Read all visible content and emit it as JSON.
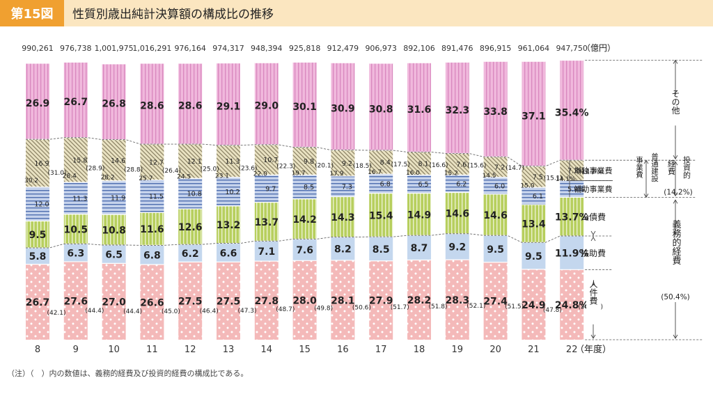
{
  "header": {
    "badge": "第15図",
    "title": "性質別歳出純計決算額の構成比の推移"
  },
  "note": "（注）（　）内の数値は、義務的経費及び投資的経費の構成比である。",
  "colors": {
    "header_badge": "#f0a030",
    "header_bar": "#fbe6c0",
    "jinken": "#f4b9b9",
    "fujo": "#c4d7ee",
    "kosai": "#b7cf5e",
    "hojo": "#c6d3ec",
    "hojo_stripe": "#3a5da5",
    "tandoku": "#e9e2c2",
    "tandoku_stripe": "#8d8466",
    "futsu_single": "#f6d07a",
    "futsu_stripe": "#e3a43a",
    "sonota": "#f0b8dc",
    "sonota_stripe": "#d27bb7"
  },
  "chart_data": {
    "type": "bar",
    "stacked": true,
    "normalized": "percent",
    "title": "性質別歳出純計決算額の構成比の推移",
    "xlabel": "（年度）",
    "unit_label": "（億円）",
    "categories": [
      "8",
      "9",
      "10",
      "11",
      "12",
      "13",
      "14",
      "15",
      "16",
      "17",
      "18",
      "19",
      "20",
      "21",
      "22"
    ],
    "totals": [
      "990,261",
      "976,738",
      "1,001,975",
      "1,016,291",
      "976,164",
      "974,317",
      "948,394",
      "925,818",
      "912,479",
      "906,973",
      "892,106",
      "891,476",
      "896,915",
      "961,064",
      "947,750"
    ],
    "series": [
      {
        "key": "jinken",
        "name": "人件費",
        "values": [
          26.7,
          27.6,
          27.0,
          26.6,
          27.5,
          27.5,
          27.8,
          28.0,
          28.1,
          27.9,
          28.2,
          28.3,
          27.4,
          24.9,
          24.8
        ],
        "labels": [
          "26.7",
          "27.6",
          "27.0",
          "26.6",
          "27.5",
          "27.5",
          "27.8",
          "28.0",
          "28.1",
          "27.9",
          "28.2",
          "28.3",
          "27.4",
          "24.9",
          "24.8%"
        ]
      },
      {
        "key": "fujo",
        "name": "扶助費",
        "values": [
          5.8,
          6.3,
          6.5,
          6.8,
          6.2,
          6.6,
          7.1,
          7.6,
          8.2,
          8.5,
          8.7,
          9.2,
          9.5,
          9.5,
          11.9
        ],
        "labels": [
          "5.8",
          "6.3",
          "6.5",
          "6.8",
          "6.2",
          "6.6",
          "7.1",
          "7.6",
          "8.2",
          "8.5",
          "8.7",
          "9.2",
          "9.5",
          "9.5",
          "11.9%"
        ]
      },
      {
        "key": "kosai",
        "name": "公債費",
        "values": [
          9.5,
          10.5,
          10.8,
          11.6,
          12.6,
          13.2,
          13.7,
          14.2,
          14.3,
          15.4,
          14.9,
          14.6,
          14.6,
          13.4,
          13.7
        ],
        "labels": [
          "9.5",
          "10.5",
          "10.8",
          "11.6",
          "12.6",
          "13.2",
          "13.7",
          "14.2",
          "14.3",
          "15.4",
          "14.9",
          "14.6",
          "14.6",
          "13.4",
          "13.7%"
        ]
      },
      {
        "key": "hojo",
        "name": "補助事業費",
        "values": [
          12.0,
          11.3,
          11.9,
          11.5,
          10.8,
          10.2,
          9.7,
          8.5,
          7.3,
          6.8,
          6.5,
          6.2,
          6.0,
          6.1,
          5.9
        ],
        "labels": [
          "12.0",
          "11.3",
          "11.9",
          "11.5",
          "10.8",
          "10.2",
          "9.7",
          "8.5",
          "7.3",
          "6.8",
          "6.5",
          "6.2",
          "6.0",
          "6.1",
          "5.9%"
        ]
      },
      {
        "key": "tandoku",
        "name": "単独事業費",
        "values": [
          16.9,
          15.8,
          14.6,
          12.7,
          12.1,
          11.3,
          10.7,
          9.8,
          9.2,
          8.4,
          8.1,
          7.6,
          7.2,
          7.5,
          7.2
        ],
        "labels": [
          "16.9",
          "15.8",
          "14.6",
          "12.7",
          "12.1",
          "11.3",
          "10.7",
          "9.8",
          "9.2",
          "8.4",
          "8.1",
          "7.6",
          "7.2",
          "7.5",
          "7.2%"
        ]
      },
      {
        "key": "sonota",
        "name": "その他",
        "values": [
          26.9,
          26.7,
          26.8,
          28.6,
          28.6,
          29.1,
          29.0,
          30.1,
          30.9,
          30.8,
          31.6,
          32.3,
          33.8,
          37.1,
          35.4
        ],
        "labels": [
          "26.9",
          "26.7",
          "26.8",
          "28.6",
          "28.6",
          "29.1",
          "29.0",
          "30.1",
          "30.9",
          "30.8",
          "31.6",
          "32.3",
          "33.8",
          "37.1",
          "35.4%"
        ]
      }
    ],
    "futsu_kensetsu": {
      "name": "普通建設事業費",
      "values": [
        30.2,
        28.4,
        28.2,
        25.7,
        24.5,
        23.1,
        22.0,
        19.7,
        17.9,
        16.7,
        16.0,
        15.2,
        14.5,
        15.0,
        14.1
      ],
      "labels": [
        "30.2",
        "28.4",
        "28.2",
        "25.7",
        "24.5",
        "23.1",
        "22.0",
        "19.7",
        "17.9",
        "16.7",
        "16.0",
        "15.2",
        "14.5",
        "15.0",
        "14.1%"
      ]
    },
    "gimuteki": {
      "name": "義務的経費",
      "values": [
        42.1,
        44.4,
        44.4,
        45.0,
        46.4,
        47.3,
        48.7,
        49.8,
        50.6,
        51.7,
        51.8,
        52.1,
        51.5,
        47.8,
        50.4
      ],
      "labels": [
        "(42.1)",
        "(44.4)",
        "(44.4)",
        "(45.0)",
        "(46.4)",
        "(47.3)",
        "(48.7)",
        "(49.8)",
        "(50.6)",
        "(51.7)",
        "(51.8)",
        "(52.1)",
        "(51.5)",
        "(47.8)",
        "(50.4%)"
      ]
    },
    "toshiteki": {
      "name": "投資的経費",
      "values": [
        31.0,
        28.9,
        28.8,
        26.4,
        25.0,
        23.6,
        22.3,
        20.1,
        18.5,
        17.5,
        16.6,
        15.6,
        14.7,
        15.1,
        14.2
      ],
      "labels": [
        "(31.0)",
        "(28.9)",
        "(28.8)",
        "(26.4)",
        "(25.0)",
        "(23.6)",
        "(22.3)",
        "(20.1)",
        "(18.5)",
        "(17.5)",
        "(16.6)",
        "(15.6)",
        "(14.7)",
        "(15.1)",
        "(14.2%)"
      ]
    },
    "right_labels": {
      "sonota": "その他",
      "tandoku": "単独事業費",
      "hojo": "補助事業費",
      "kosai": "公債費",
      "fujo": "扶助費",
      "jinken": "人件費",
      "futsu": "普通建設事業費",
      "toshi": "投資的経費",
      "toshi_pct": "(14.2%)",
      "gimu": "義務的経費",
      "gimu_pct": "(50.4%)"
    },
    "ylim": [
      0,
      100
    ],
    "grid": false,
    "legend": "right-side bracket labels"
  }
}
